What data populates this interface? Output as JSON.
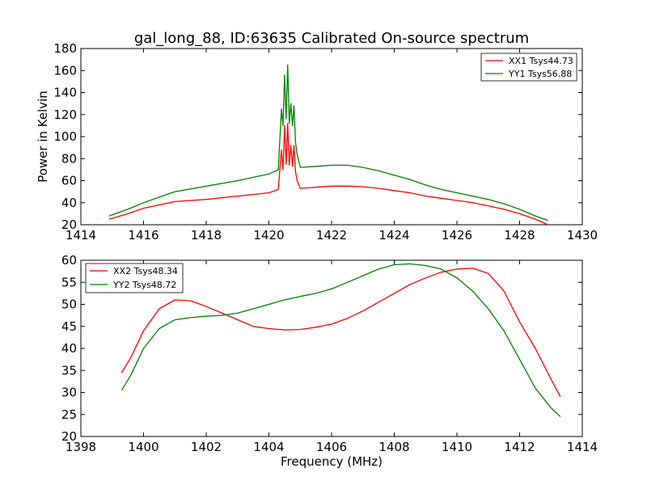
{
  "figure": {
    "title": "gal_long_88, ID:63635 Calibrated On-source spectrum",
    "background": "#ffffff"
  },
  "chart_data": [
    {
      "type": "line",
      "title": "gal_long_88, ID:63635 Calibrated On-source spectrum",
      "xlabel": "",
      "ylabel": "Power in Kelvin",
      "xlim": [
        1414,
        1430
      ],
      "ylim": [
        20,
        180
      ],
      "xticks": [
        1414,
        1416,
        1418,
        1420,
        1422,
        1424,
        1426,
        1428,
        1430
      ],
      "yticks": [
        20,
        40,
        60,
        80,
        100,
        120,
        140,
        160,
        180
      ],
      "grid": false,
      "legend": "top-right",
      "series": [
        {
          "name": "XX1 Tsys44.73",
          "color": "#ff0000",
          "x": [
            1414.9,
            1415.5,
            1416.0,
            1416.5,
            1417.0,
            1418.0,
            1419.0,
            1420.0,
            1420.3,
            1420.4,
            1420.45,
            1420.5,
            1420.55,
            1420.6,
            1420.65,
            1420.7,
            1420.75,
            1420.8,
            1420.85,
            1420.9,
            1421.0,
            1421.5,
            1422.0,
            1422.5,
            1423.0,
            1423.5,
            1424.0,
            1424.5,
            1425.0,
            1425.5,
            1426.0,
            1426.5,
            1427.0,
            1427.5,
            1428.0,
            1428.5,
            1428.9
          ],
          "y": [
            25,
            30,
            35,
            38,
            41,
            43,
            46,
            49,
            52,
            88,
            70,
            110,
            75,
            112,
            74,
            92,
            73,
            92,
            68,
            60,
            53,
            54,
            55,
            55,
            54.5,
            53,
            51,
            49,
            46,
            44,
            42,
            40,
            37,
            34,
            30,
            25,
            20
          ]
        },
        {
          "name": "YY1 Tsys56.88",
          "color": "#008000",
          "x": [
            1414.9,
            1415.5,
            1416.0,
            1416.5,
            1417.0,
            1418.0,
            1419.0,
            1420.0,
            1420.3,
            1420.4,
            1420.45,
            1420.5,
            1420.55,
            1420.6,
            1420.65,
            1420.7,
            1420.75,
            1420.8,
            1420.85,
            1420.9,
            1421.0,
            1421.5,
            1422.0,
            1422.5,
            1423.0,
            1423.5,
            1424.0,
            1424.5,
            1425.0,
            1425.5,
            1426.0,
            1426.5,
            1427.0,
            1427.5,
            1428.0,
            1428.5,
            1428.9
          ],
          "y": [
            28,
            34,
            40,
            45,
            50,
            55,
            60,
            66,
            70,
            125,
            110,
            156,
            116,
            165,
            112,
            130,
            110,
            128,
            95,
            84,
            72,
            73,
            74,
            74,
            72,
            69,
            65,
            61,
            56,
            52,
            49,
            46,
            43,
            39,
            34,
            28,
            24
          ]
        }
      ]
    },
    {
      "type": "line",
      "title": "",
      "xlabel": "Frequency (MHz)",
      "ylabel": "",
      "xlim": [
        1398,
        1414
      ],
      "ylim": [
        20,
        60
      ],
      "xticks": [
        1398,
        1400,
        1402,
        1404,
        1406,
        1408,
        1410,
        1412,
        1414
      ],
      "yticks": [
        20,
        25,
        30,
        35,
        40,
        45,
        50,
        55,
        60
      ],
      "grid": false,
      "legend": "top-left",
      "series": [
        {
          "name": "XX2 Tsys48.34",
          "color": "#ff0000",
          "x": [
            1399.3,
            1399.6,
            1400.0,
            1400.5,
            1401.0,
            1401.5,
            1402.0,
            1402.5,
            1403.0,
            1403.5,
            1404.0,
            1404.5,
            1405.0,
            1405.5,
            1406.0,
            1406.5,
            1407.0,
            1407.5,
            1408.0,
            1408.5,
            1409.0,
            1409.5,
            1410.0,
            1410.5,
            1411.0,
            1411.5,
            1412.0,
            1412.5,
            1413.0,
            1413.3
          ],
          "y": [
            34.5,
            38,
            44,
            49,
            51,
            50.8,
            49.5,
            48,
            46.5,
            45,
            44.5,
            44.2,
            44.3,
            44.8,
            45.5,
            46.8,
            48.5,
            50.5,
            52.5,
            54.5,
            56,
            57.3,
            58,
            58.2,
            57,
            53,
            46,
            40,
            33,
            29
          ]
        },
        {
          "name": "YY2 Tsys48.72",
          "color": "#008000",
          "x": [
            1399.3,
            1399.6,
            1400.0,
            1400.5,
            1401.0,
            1401.5,
            1402.0,
            1402.5,
            1403.0,
            1403.5,
            1404.0,
            1404.5,
            1405.0,
            1405.5,
            1406.0,
            1406.5,
            1407.0,
            1407.5,
            1408.0,
            1408.5,
            1409.0,
            1409.5,
            1410.0,
            1410.5,
            1411.0,
            1411.5,
            1412.0,
            1412.5,
            1413.0,
            1413.3
          ],
          "y": [
            30.5,
            34,
            40,
            44.5,
            46.5,
            47,
            47.3,
            47.5,
            48,
            49,
            50,
            51,
            51.8,
            52.5,
            53.5,
            55,
            56.5,
            58,
            59,
            59.2,
            58.8,
            58,
            56,
            53,
            49,
            44,
            37.5,
            31,
            26.5,
            24.5
          ]
        }
      ]
    }
  ]
}
